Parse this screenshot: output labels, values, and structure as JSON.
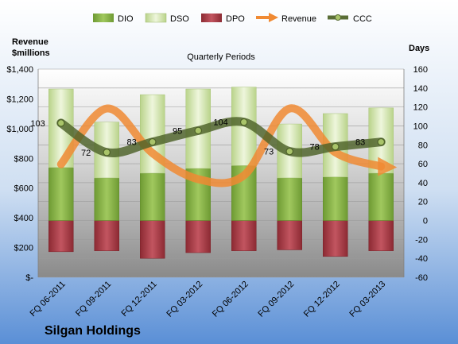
{
  "chart_data": {
    "type": "bar",
    "title": "Quarterly Periods",
    "company": "Silgan Holdings",
    "left_axis_label_line1": "Revenue",
    "left_axis_label_line2": "$millions",
    "right_axis_label": "Days",
    "categories": [
      "FQ 06-2011",
      "FQ 09-2011",
      "FQ 12-2011",
      "FQ 03-2012",
      "FQ 06-2012",
      "FQ 09-2012",
      "FQ 12-2012",
      "FQ 03-2013"
    ],
    "left_ylim": [
      0,
      1400
    ],
    "left_ticks": [
      "$-",
      "$200",
      "$400",
      "$600",
      "$800",
      "$1,000",
      "$1,200",
      "$1,400"
    ],
    "right_ylim": [
      -60,
      160
    ],
    "right_ticks": [
      "-60",
      "-40",
      "-20",
      "0",
      "20",
      "40",
      "60",
      "80",
      "100",
      "120",
      "140",
      "160"
    ],
    "grid": true,
    "legend_position": "top",
    "series": [
      {
        "name": "DIO",
        "axis": "days",
        "values": [
          56,
          45,
          50,
          55,
          58,
          45,
          46,
          50
        ],
        "color": "#8cb34a"
      },
      {
        "name": "DSO",
        "axis": "days",
        "values": [
          83,
          59,
          83,
          84,
          83,
          57,
          67,
          69
        ],
        "color": "#d8e8b0"
      },
      {
        "name": "DPO",
        "axis": "days",
        "values": [
          -33,
          -32,
          -40,
          -34,
          -32,
          -31,
          -38,
          -32
        ],
        "color": "#b8444d"
      },
      {
        "name": "Revenue",
        "axis": "revenue",
        "values": [
          760,
          1135,
          835,
          660,
          685,
          1135,
          840,
          745
        ],
        "color": "#f08a33"
      },
      {
        "name": "CCC",
        "axis": "days",
        "values": [
          103,
          72,
          83,
          95,
          104,
          73,
          78,
          83
        ],
        "color": "#5a6e36"
      }
    ],
    "data_labels": [
      "103",
      "72",
      "83",
      "95",
      "104",
      "73",
      "78",
      "83"
    ]
  }
}
